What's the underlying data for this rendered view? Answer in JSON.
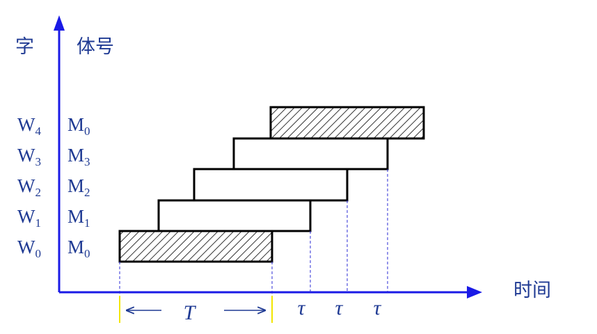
{
  "axis": {
    "y_title_left": "字",
    "y_title_right": "体号",
    "x_title": "时间"
  },
  "rows": [
    {
      "word": "W",
      "word_sub": "0",
      "module": "M",
      "module_sub": "0",
      "hatched": true
    },
    {
      "word": "W",
      "word_sub": "1",
      "module": "M",
      "module_sub": "1",
      "hatched": false
    },
    {
      "word": "W",
      "word_sub": "2",
      "module": "M",
      "module_sub": "2",
      "hatched": false
    },
    {
      "word": "W",
      "word_sub": "3",
      "module": "M",
      "module_sub": "3",
      "hatched": false
    },
    {
      "word": "W",
      "word_sub": "4",
      "module": "M",
      "module_sub": "0",
      "hatched": true
    }
  ],
  "interval": {
    "period_label": "T",
    "tau_labels": [
      "τ",
      "τ",
      "τ"
    ]
  },
  "colors": {
    "axis": "#1a1ae6",
    "text": "#1f3a93",
    "bar_border": "#000000",
    "period_marker": "#f2e600"
  }
}
